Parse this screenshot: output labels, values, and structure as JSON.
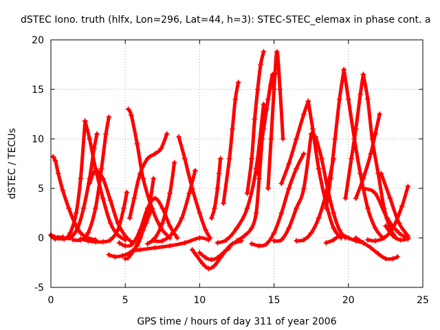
{
  "chart_data": {
    "type": "scatter",
    "title": "dSTEC Iono. truth (hlfx, Lon=296, Lat=44, h=3): STEC-STEC_elemax in phase cont. a",
    "xlabel": "GPS time / hours of day 311 of year 2006",
    "ylabel": "dSTEC  / TECUs",
    "xlim": [
      0,
      25
    ],
    "ylim": [
      -5,
      20
    ],
    "xticks": [
      0,
      5,
      10,
      15,
      20,
      25
    ],
    "yticks": [
      -5,
      0,
      5,
      10,
      15,
      20
    ],
    "grid": true,
    "legend": "none",
    "marker": "plus",
    "color": "#ff0000",
    "series": [
      {
        "x": [
          0.0,
          0.05,
          0.1,
          0.2,
          0.3,
          0.45,
          0.6,
          0.8
        ],
        "y": [
          0.3,
          0.2,
          0.1,
          0.0,
          -0.1,
          0.0,
          0.0,
          0.1
        ]
      },
      {
        "x": [
          0.0,
          0.25,
          0.5,
          0.9,
          1.3,
          1.7,
          2.0,
          2.3
        ],
        "y": [
          0.3,
          0.1,
          0.0,
          -0.1,
          0.5,
          2.5,
          6.0,
          11.8
        ]
      },
      {
        "x": [
          0.15,
          0.3,
          0.5,
          0.8,
          1.2,
          1.6,
          2.0,
          2.5,
          3.0
        ],
        "y": [
          8.2,
          7.8,
          6.5,
          4.8,
          3.0,
          1.5,
          0.5,
          0.0,
          -0.2
        ]
      },
      {
        "x": [
          0.8,
          1.3,
          1.8,
          2.2,
          2.6,
          2.9,
          3.1
        ],
        "y": [
          0.0,
          0.0,
          1.0,
          3.0,
          6.0,
          9.0,
          10.5
        ]
      },
      {
        "x": [
          2.3,
          2.6,
          3.0,
          3.5,
          4.0,
          4.5,
          5.0
        ],
        "y": [
          11.8,
          10.0,
          7.0,
          4.0,
          1.5,
          0.3,
          -0.2
        ]
      },
      {
        "x": [
          1.5,
          2.0,
          2.5,
          3.0,
          3.4,
          3.7,
          3.9
        ],
        "y": [
          -0.2,
          -0.2,
          0.5,
          3.0,
          7.0,
          10.5,
          12.2
        ]
      },
      {
        "x": [
          2.6,
          3.0,
          3.5,
          4.0,
          4.5,
          5.0,
          5.5
        ],
        "y": [
          5.5,
          6.8,
          6.0,
          3.8,
          1.5,
          0.2,
          -0.5
        ]
      },
      {
        "x": [
          2.0,
          2.5,
          3.0,
          3.5,
          4.0,
          4.5,
          4.9,
          5.1
        ],
        "y": [
          -0.1,
          -0.3,
          -0.4,
          -0.4,
          -0.2,
          0.8,
          3.0,
          4.6
        ]
      },
      {
        "x": [
          5.2,
          5.4,
          5.8,
          6.2,
          6.8,
          7.4,
          8.0
        ],
        "y": [
          13.0,
          12.4,
          9.5,
          6.0,
          3.0,
          1.0,
          0.0
        ]
      },
      {
        "x": [
          3.9,
          4.3,
          4.8,
          5.3,
          5.8,
          6.2,
          6.6,
          6.9
        ],
        "y": [
          -1.7,
          -1.9,
          -1.8,
          -1.5,
          -0.8,
          0.8,
          3.0,
          6.0
        ]
      },
      {
        "x": [
          5.0,
          5.2,
          5.6,
          6.0,
          6.4,
          6.8
        ],
        "y": [
          -2.1,
          -2.0,
          -1.2,
          0.0,
          1.5,
          3.0
        ]
      },
      {
        "x": [
          4.6,
          5.0,
          5.5,
          6.0,
          6.5,
          7.0,
          7.5,
          8.0,
          8.5
        ],
        "y": [
          -0.5,
          -0.8,
          -0.6,
          0.8,
          3.0,
          4.0,
          3.0,
          1.2,
          0.0
        ]
      },
      {
        "x": [
          5.3,
          5.6,
          6.0,
          6.5,
          7.0,
          7.4,
          7.8
        ],
        "y": [
          2.0,
          4.0,
          6.5,
          8.0,
          8.5,
          9.0,
          10.5
        ]
      },
      {
        "x": [
          6.5,
          7.0,
          7.5,
          8.0,
          8.3
        ],
        "y": [
          -0.6,
          0.0,
          1.5,
          4.5,
          7.6
        ]
      },
      {
        "x": [
          5.5,
          6.0,
          7.0,
          8.0,
          9.0,
          10.0,
          10.6
        ],
        "y": [
          -1.3,
          -1.2,
          -1.0,
          -0.8,
          -0.5,
          0.0,
          -0.2
        ]
      },
      {
        "x": [
          8.6,
          9.0,
          9.5,
          10.0,
          10.4,
          10.7
        ],
        "y": [
          10.2,
          8.0,
          5.0,
          2.5,
          0.8,
          0.0
        ]
      },
      {
        "x": [
          6.8,
          7.5,
          8.2,
          8.8,
          9.3,
          9.7
        ],
        "y": [
          -0.3,
          -0.3,
          0.5,
          2.0,
          4.5,
          6.8
        ]
      },
      {
        "x": [
          9.5,
          9.8,
          10.2,
          10.6,
          11.0,
          11.4,
          11.8,
          12.2,
          12.8
        ],
        "y": [
          -1.2,
          -1.8,
          -2.6,
          -3.1,
          -2.8,
          -2.0,
          -1.2,
          -0.6,
          -0.3
        ]
      },
      {
        "x": [
          10.0,
          10.4,
          10.8,
          11.2,
          11.6,
          12.0
        ],
        "y": [
          -1.5,
          -2.0,
          -2.2,
          -2.0,
          -1.5,
          -1.0
        ]
      },
      {
        "x": [
          10.8,
          11.0,
          11.2,
          11.3,
          11.4
        ],
        "y": [
          2.0,
          3.0,
          5.0,
          6.5,
          8.0
        ]
      },
      {
        "x": [
          11.6,
          12.0,
          12.2,
          12.4,
          12.6
        ],
        "y": [
          3.5,
          8.0,
          11.0,
          14.0,
          15.7
        ]
      },
      {
        "x": [
          11.2,
          11.8,
          12.5,
          13.2,
          13.8,
          14.3
        ],
        "y": [
          -0.5,
          -0.2,
          1.0,
          3.0,
          7.0,
          13.5
        ]
      },
      {
        "x": [
          12.5,
          13.0,
          13.5,
          13.8,
          14.0,
          14.2
        ],
        "y": [
          -0.3,
          0.2,
          1.0,
          2.5,
          6.0,
          10.0
        ]
      },
      {
        "x": [
          13.2,
          13.5,
          13.7,
          13.9,
          14.1,
          14.3
        ],
        "y": [
          4.5,
          8.0,
          12.0,
          15.0,
          17.5,
          18.8
        ]
      },
      {
        "x": [
          14.3,
          14.6,
          14.9,
          15.0
        ],
        "y": [
          11.0,
          14.0,
          16.5,
          15.0
        ]
      },
      {
        "x": [
          14.6,
          14.8,
          15.0,
          15.2,
          15.4,
          15.6
        ],
        "y": [
          5.0,
          10.0,
          15.0,
          18.8,
          15.0,
          10.0
        ]
      },
      {
        "x": [
          13.9,
          14.2,
          14.5,
          14.8,
          15.1
        ],
        "y": [
          6.5,
          10.0,
          13.0,
          15.5,
          16.6
        ]
      },
      {
        "x": [
          13.5,
          14.0,
          14.5,
          15.0,
          15.5,
          16.0,
          16.5,
          17.0
        ],
        "y": [
          -0.6,
          -0.8,
          -0.6,
          0.5,
          2.5,
          5.0,
          7.0,
          8.5
        ]
      },
      {
        "x": [
          15.0,
          15.5,
          16.0,
          16.5,
          17.0,
          17.5
        ],
        "y": [
          -0.3,
          -0.2,
          1.0,
          3.0,
          5.0,
          10.5
        ]
      },
      {
        "x": [
          15.5,
          16.0,
          16.5,
          17.0,
          17.3
        ],
        "y": [
          5.5,
          7.5,
          10.0,
          12.5,
          13.8
        ]
      },
      {
        "x": [
          17.3,
          17.6,
          18.0,
          18.5,
          19.0,
          19.5
        ],
        "y": [
          13.8,
          11.0,
          7.0,
          3.5,
          1.0,
          0.0
        ]
      },
      {
        "x": [
          16.5,
          17.0,
          17.5,
          18.0,
          18.5,
          19.0
        ],
        "y": [
          -0.3,
          -0.2,
          0.5,
          2.0,
          4.5,
          8.0
        ]
      },
      {
        "x": [
          17.8,
          18.2,
          18.6,
          19.0,
          19.4,
          19.8
        ],
        "y": [
          10.2,
          8.0,
          5.0,
          2.5,
          0.8,
          0.0
        ]
      },
      {
        "x": [
          18.5,
          18.8,
          19.1,
          19.4,
          19.7
        ],
        "y": [
          3.0,
          6.0,
          10.0,
          14.0,
          17.0
        ]
      },
      {
        "x": [
          19.7,
          20.0,
          20.4,
          20.8,
          21.3,
          21.8,
          22.3
        ],
        "y": [
          17.0,
          14.0,
          10.0,
          6.5,
          3.0,
          1.0,
          0.0
        ]
      },
      {
        "x": [
          19.8,
          20.2,
          20.5,
          20.8,
          21.0
        ],
        "y": [
          4.0,
          8.0,
          11.0,
          14.5,
          16.5
        ]
      },
      {
        "x": [
          21.0,
          21.3,
          21.6,
          22.0,
          22.4,
          22.8,
          23.2
        ],
        "y": [
          16.5,
          14.0,
          10.0,
          6.5,
          3.0,
          1.0,
          0.0
        ]
      },
      {
        "x": [
          20.5,
          21.0,
          21.5,
          21.8,
          22.1
        ],
        "y": [
          4.0,
          6.0,
          8.5,
          10.5,
          12.5
        ]
      },
      {
        "x": [
          18.5,
          19.0,
          19.5,
          20.0,
          20.5,
          21.0
        ],
        "y": [
          -0.5,
          -0.2,
          0.3,
          0.0,
          -0.3,
          -0.5
        ]
      },
      {
        "x": [
          20.5,
          21.0,
          21.5,
          22.0,
          22.5,
          23.0,
          23.3
        ],
        "y": [
          0.0,
          -0.5,
          -1.0,
          -1.6,
          -2.1,
          -2.1,
          -1.9
        ]
      },
      {
        "x": [
          21.3,
          21.8,
          22.4,
          23.0,
          23.6,
          24.0
        ],
        "y": [
          -0.2,
          -0.3,
          0.0,
          1.0,
          3.2,
          5.2
        ]
      },
      {
        "x": [
          22.2,
          22.8,
          23.4,
          24.0
        ],
        "y": [
          6.5,
          4.0,
          1.5,
          0.2
        ]
      },
      {
        "x": [
          21.0,
          21.8,
          22.6,
          23.4,
          24.0
        ],
        "y": [
          5.0,
          4.5,
          2.0,
          0.5,
          0.0
        ]
      },
      {
        "x": [
          22.5,
          23.0,
          23.5,
          24.0
        ],
        "y": [
          1.2,
          0.2,
          -0.2,
          -0.1
        ]
      }
    ]
  }
}
